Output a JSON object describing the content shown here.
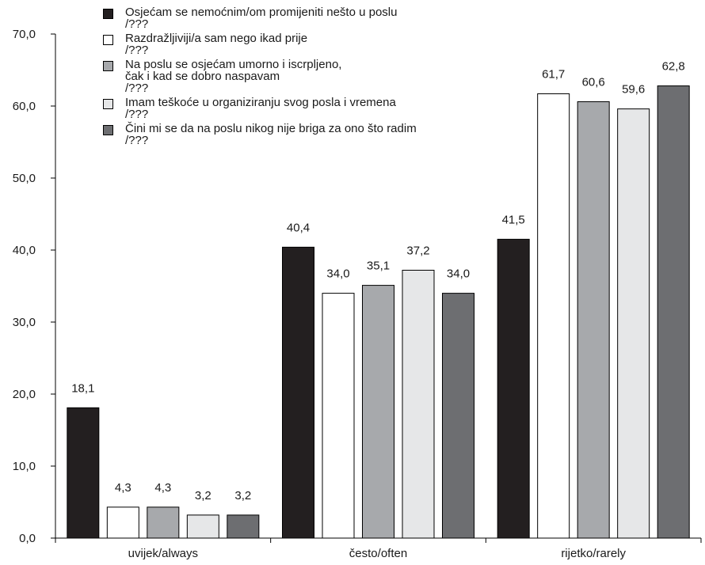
{
  "chart_data": {
    "type": "bar",
    "categories": [
      "uvijek/always",
      "često/often",
      "rijetko/rarely"
    ],
    "series": [
      {
        "name": "Osjećam se nemoćnim/om promijeniti nešto u poslu\n/???",
        "values": [
          18.1,
          40.4,
          41.5
        ],
        "value_labels": [
          "18,1",
          "40,4",
          "41,5"
        ],
        "color": "#231f20"
      },
      {
        "name": "Razdražljiviji/a sam nego ikad prije\n/???",
        "values": [
          4.3,
          34.0,
          61.7
        ],
        "value_labels": [
          "4,3",
          "34,0",
          "61,7"
        ],
        "color": "#ffffff"
      },
      {
        "name": "Na poslu se osjećam umorno i iscrpljeno,\nčak i kad se dobro naspavam\n/???",
        "values": [
          4.3,
          35.1,
          60.6
        ],
        "value_labels": [
          "4,3",
          "35,1",
          "60,6"
        ],
        "color": "#a7a9ac"
      },
      {
        "name": "Imam teškoće u organiziranju svog posla i vremena\n/???",
        "values": [
          3.2,
          37.2,
          59.6
        ],
        "value_labels": [
          "3,2",
          "37,2",
          "59,6"
        ],
        "color": "#e6e7e8"
      },
      {
        "name": "Čini mi se da na poslu nikog nije briga za ono što radim\n/???",
        "values": [
          3.2,
          34.0,
          62.8
        ],
        "value_labels": [
          "3,2",
          "34,0",
          "62,8"
        ],
        "color": "#6d6e71"
      }
    ],
    "ylim": [
      0,
      70
    ],
    "yticks": [
      "0,0",
      "10,0",
      "20,0",
      "30,0",
      "40,0",
      "50,0",
      "60,0",
      "70,0"
    ],
    "grid": false,
    "legend_position": "top-left"
  }
}
